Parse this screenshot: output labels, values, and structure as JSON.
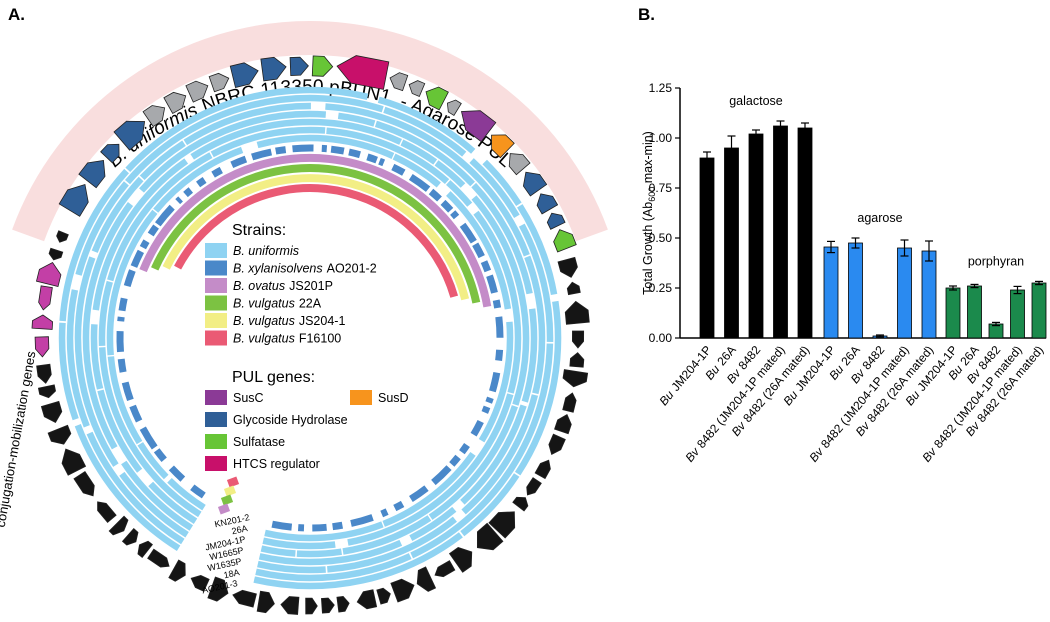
{
  "panel_a": {
    "label": "A.",
    "arc_title": {
      "species": "B. uniformis",
      "rest": "NBRC 113350 pBUN1  - Agarose PUL"
    },
    "strains_title": "Strains:",
    "strains": [
      {
        "species": "B. uniformis",
        "color": "#8fd3f2"
      },
      {
        "species": "B. xylanisolvens",
        "strain": "AO201-2",
        "color": "#4a88c9"
      },
      {
        "species": "B. ovatus",
        "strain": "JS201P",
        "color": "#c48cc8"
      },
      {
        "species": "B. vulgatus",
        "strain": "22A",
        "color": "#7cc242"
      },
      {
        "species": "B. vulgatus",
        "strain": "JS204-1",
        "color": "#f2ee85"
      },
      {
        "species": "B. vulgatus",
        "strain": "F16100",
        "color": "#ea5a74"
      }
    ],
    "pul_title": "PUL genes:",
    "pul_genes": [
      {
        "name": "SusC",
        "color": "#8b3a96"
      },
      {
        "name": "SusD",
        "color": "#f7941d"
      },
      {
        "name": "Glycoside Hydrolase",
        "color": "#2f5f97"
      },
      {
        "name": "Sulfatase",
        "color": "#67c536"
      },
      {
        "name": "HTCS regulator",
        "color": "#c8106a"
      }
    ],
    "side_label": "conjugation-mobilization genes",
    "ring_labels": [
      "KN201-2",
      "26A",
      "JM204-1P",
      "W1665P",
      "W1635P",
      "18A",
      "AO201-3"
    ]
  },
  "chart_data": {
    "type": "bar",
    "label": "B.",
    "y_label": {
      "text": "Total Growth (Ab",
      "sub": "600",
      "end": " max-min)"
    },
    "ylim": [
      0,
      1.25
    ],
    "yticks": [
      {
        "value": 0,
        "label": "0.00"
      },
      0.25,
      {
        "value": 0.5,
        "label": "0.50"
      },
      0.75,
      {
        "value": 1,
        "label": "1.00"
      },
      1.25
    ],
    "groups": [
      {
        "name": "galactose",
        "color": "#000000",
        "categories": [
          {
            "prefix": "Bu",
            "name": "JM204-1P"
          },
          {
            "prefix": "Bu",
            "name": "26A"
          },
          {
            "prefix": "Bv",
            "name": "8482"
          },
          {
            "prefix": "Bv",
            "name": "8482 (JM204-1P mated)"
          },
          {
            "prefix": "Bv",
            "name": "8482 (26A mated)"
          }
        ],
        "values": [
          0.9,
          0.95,
          1.02,
          1.06,
          1.05
        ],
        "errors": [
          0.03,
          0.06,
          0.02,
          0.025,
          0.025
        ]
      },
      {
        "name": "agarose",
        "color": "#2a8af0",
        "categories": [
          {
            "prefix": "Bu",
            "name": "JM204-1P"
          },
          {
            "prefix": "Bu",
            "name": "26A"
          },
          {
            "prefix": "Bv",
            "name": "8482"
          },
          {
            "prefix": "Bv",
            "name": "8482 (JM204-1P mated)"
          },
          {
            "prefix": "Bv",
            "name": "8482 (26A mated)"
          }
        ],
        "values": [
          0.455,
          0.475,
          0.01,
          0.45,
          0.435
        ],
        "errors": [
          0.028,
          0.025,
          0.005,
          0.04,
          0.05
        ]
      },
      {
        "name": "porphyran",
        "color": "#1b8a4c",
        "categories": [
          {
            "prefix": "Bu",
            "name": "JM204-1P"
          },
          {
            "prefix": "Bu",
            "name": "26A"
          },
          {
            "prefix": "Bv",
            "name": "8482"
          },
          {
            "prefix": "Bv",
            "name": "8482 (JM204-1P mated)"
          },
          {
            "prefix": "Bv",
            "name": "8482 (26A mated)"
          }
        ],
        "values": [
          0.25,
          0.26,
          0.07,
          0.24,
          0.275
        ],
        "errors": [
          0.01,
          0.008,
          0.008,
          0.018,
          0.008
        ]
      }
    ]
  }
}
